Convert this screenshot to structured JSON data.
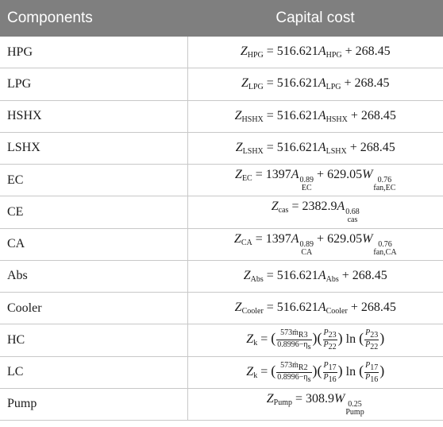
{
  "headers": {
    "components": "Components",
    "capital_cost": "Capital cost"
  },
  "rows": [
    {
      "component": "HPG",
      "sym": "Z",
      "sub": "HPG",
      "coef": " = 516.621",
      "var": "A",
      "var_sub": "HPG",
      "tail": " + 268.45"
    },
    {
      "component": "LPG",
      "sym": "Z",
      "sub": "LPG",
      "coef": " = 516.621",
      "var": "A",
      "var_sub": "LPG",
      "tail": " + 268.45"
    },
    {
      "component": "HSHX",
      "sym": "Z",
      "sub": "HSHX",
      "coef": " = 516.621",
      "var": "A",
      "var_sub": "HSHX",
      "tail": " + 268.45"
    },
    {
      "component": "LSHX",
      "sym": "Z",
      "sub": "LSHX",
      "coef": " = 516.621",
      "var": "A",
      "var_sub": "LSHX",
      "tail": " + 268.45"
    },
    {
      "component": "EC",
      "sym": "Z",
      "sub": "EC",
      "coef": " = 1397",
      "var": "A",
      "var_sup": "0.89",
      "var_sub": "EC",
      "tail": " + 629.05",
      "var2": "W",
      "var2_sup": "0.76",
      "var2_sub": "fan,EC"
    },
    {
      "component": "CE",
      "sym": "Z",
      "sub": "cas",
      "coef": " = 2382.9",
      "var": "A",
      "var_sup": "0.68",
      "var_sub": "cas"
    },
    {
      "component": "CA",
      "sym": "Z",
      "sub": "CA",
      "coef": " = 1397",
      "var": "A",
      "var_sup": "0.89",
      "var_sub": "CA",
      "tail": " + 629.05",
      "var2": "W",
      "var2_sup": "0.76",
      "var2_sub": "fan,CA"
    },
    {
      "component": "Abs",
      "sym": "Z",
      "sub": "Abs",
      "coef": " = 516.621",
      "var": "A",
      "var_sub": "Abs",
      "tail": " + 268.45"
    },
    {
      "component": "Cooler",
      "sym": "Z",
      "sub": "Cooler",
      "coef": " = 516.621",
      "var": "A",
      "var_sub": "Cooler",
      "tail": " + 268.45"
    },
    {
      "component": "HC",
      "sym": "Z",
      "sub": "k",
      "eq": " = ",
      "num1": "573ṁ",
      "num1_sub": "R3",
      "den1": "0.8996−η",
      "den1_sub": "s",
      "num2": "P",
      "num2_sub": "23",
      "den2": "P",
      "den2_sub": "22",
      "ln": " ln "
    },
    {
      "component": "LC",
      "sym": "Z",
      "sub": "k",
      "eq": " = ",
      "num1": "573ṁ",
      "num1_sub": "R2",
      "den1": "0.8996−η",
      "den1_sub": "s",
      "num2": "P",
      "num2_sub": "17",
      "den2": "P",
      "den2_sub": "16",
      "ln": " ln "
    },
    {
      "component": "Pump",
      "sym": "Z",
      "sub": "Pump",
      "coef": " = 308.9",
      "var": "W",
      "var_sup": "0.25",
      "var_sub": "Pump"
    }
  ]
}
